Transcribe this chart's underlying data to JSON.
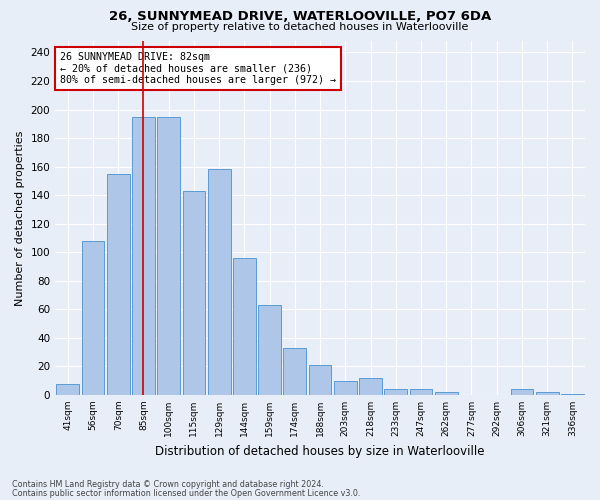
{
  "title1": "26, SUNNYMEAD DRIVE, WATERLOOVILLE, PO7 6DA",
  "title2": "Size of property relative to detached houses in Waterlooville",
  "xlabel": "Distribution of detached houses by size in Waterlooville",
  "ylabel": "Number of detached properties",
  "categories": [
    "41sqm",
    "56sqm",
    "70sqm",
    "85sqm",
    "100sqm",
    "115sqm",
    "129sqm",
    "144sqm",
    "159sqm",
    "174sqm",
    "188sqm",
    "203sqm",
    "218sqm",
    "233sqm",
    "247sqm",
    "262sqm",
    "277sqm",
    "292sqm",
    "306sqm",
    "321sqm",
    "336sqm"
  ],
  "values": [
    8,
    108,
    155,
    195,
    195,
    143,
    158,
    96,
    63,
    33,
    21,
    10,
    12,
    4,
    4,
    2,
    0,
    0,
    4,
    2,
    1
  ],
  "bar_color": "#aec6e8",
  "bar_edge_color": "#5b9bd5",
  "annotation_title": "26 SUNNYMEAD DRIVE: 82sqm",
  "annotation_line2": "← 20% of detached houses are smaller (236)",
  "annotation_line3": "80% of semi-detached houses are larger (972) →",
  "annotation_box_color": "#ffffff",
  "annotation_box_edge": "#cc0000",
  "vline_color": "#cc0000",
  "vline_pos": 3.0,
  "ylim": [
    0,
    248
  ],
  "yticks": [
    0,
    20,
    40,
    60,
    80,
    100,
    120,
    140,
    160,
    180,
    200,
    220,
    240
  ],
  "footnote1": "Contains HM Land Registry data © Crown copyright and database right 2024.",
  "footnote2": "Contains public sector information licensed under the Open Government Licence v3.0.",
  "bg_color": "#e8eef8",
  "grid_color": "#ffffff",
  "title1_fontsize": 9.5,
  "title2_fontsize": 8.0,
  "ylabel_fontsize": 8.0,
  "xlabel_fontsize": 8.5
}
